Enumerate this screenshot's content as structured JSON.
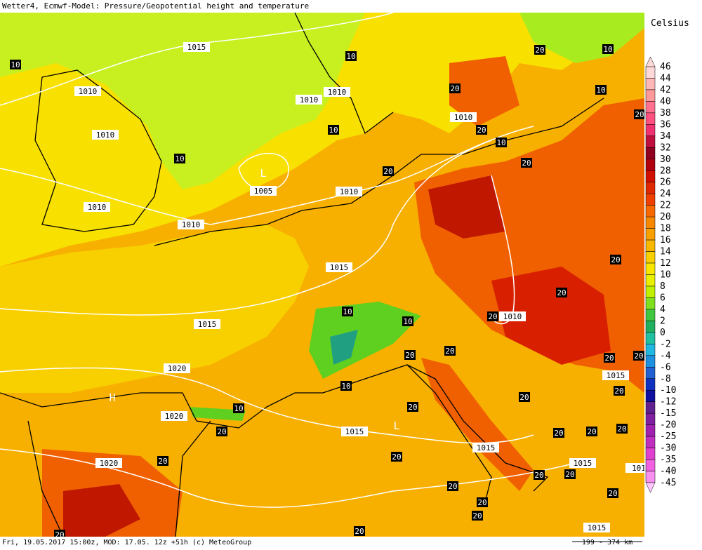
{
  "header": {
    "title": "Wetter4, Ecmwf-Model: Pressure/Geopotential height and temperature"
  },
  "footer": {
    "text": "Fri, 19.05.2017 15:00z, MOD: 17.05. 12z +51h (c) MeteoGroup",
    "scale": "199 - 374 km"
  },
  "legend": {
    "title": "Celsius",
    "levels": [
      "46",
      "44",
      "42",
      "40",
      "38",
      "36",
      "34",
      "32",
      "30",
      "28",
      "26",
      "24",
      "22",
      "20",
      "18",
      "16",
      "14",
      "12",
      "10",
      "8",
      "6",
      "4",
      "2",
      "0",
      "-2",
      "-4",
      "-6",
      "-8",
      "-10",
      "-12",
      "-15",
      "-20",
      "-25",
      "-30",
      "-35",
      "-40",
      "-45"
    ],
    "colors": [
      "#ffd8d8",
      "#ffb8b8",
      "#ff9898",
      "#ff7090",
      "#ff5080",
      "#f03070",
      "#c01040",
      "#900020",
      "#b00010",
      "#d01000",
      "#e02800",
      "#f04000",
      "#f86800",
      "#f88800",
      "#f8a000",
      "#f8b800",
      "#f8d000",
      "#f8e800",
      "#e8f000",
      "#c0f000",
      "#80e020",
      "#40c840",
      "#20b060",
      "#20c0a0",
      "#20b8e0",
      "#2090e0",
      "#2060d0",
      "#1030c0",
      "#1010a0",
      "#602090",
      "#8020a0",
      "#a020b0",
      "#c030c0",
      "#e040d0",
      "#f060e0",
      "#f890f0",
      "#ffc8ff"
    ]
  },
  "map": {
    "isobar_labels": [
      "1015",
      "1010",
      "1010",
      "1010",
      "1010",
      "1010",
      "1005",
      "1010",
      "1010",
      "1010",
      "1015",
      "1015",
      "1010",
      "1020",
      "1020",
      "1015",
      "1015",
      "1020",
      "1015",
      "1015",
      "1015",
      "101"
    ],
    "temp_labels": [
      "10",
      "10",
      "10",
      "10",
      "10",
      "10",
      "10",
      "10",
      "10",
      "10",
      "10",
      "20",
      "20",
      "20",
      "20",
      "20",
      "20",
      "20",
      "20",
      "20",
      "20",
      "20",
      "20",
      "20",
      "20",
      "20",
      "20",
      "20",
      "20",
      "20",
      "20",
      "20",
      "20",
      "20",
      "20",
      "20",
      "20",
      "20",
      "20",
      "20",
      "20"
    ],
    "pressure_centers": [
      "L",
      "H",
      "L"
    ]
  }
}
